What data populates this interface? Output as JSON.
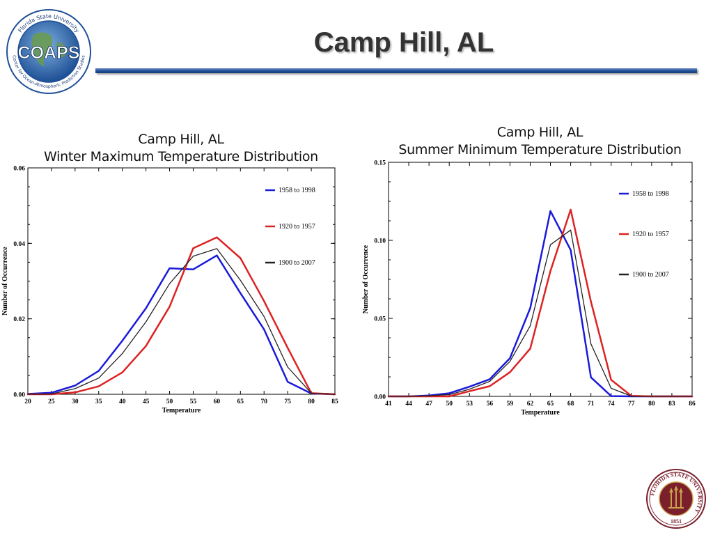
{
  "header": {
    "title": "Camp Hill, AL",
    "logo": {
      "acronym": "COAPS",
      "arc_top": "Florida State University",
      "arc_bottom": "Center for Ocean-Atmospheric Prediction Studies"
    },
    "rule_color": "#1f4f99"
  },
  "seal": {
    "text": "FLORIDA STATE UNIVERSITY",
    "year": "1851",
    "color": "#7a1f2b",
    "accent": "#c9a24a"
  },
  "charts": {
    "left": {
      "title_line1": "Camp Hill, AL",
      "title_line2": "Winter Maximum Temperature Distribution"
    },
    "right": {
      "title_line1": "Camp Hill, AL",
      "title_line2": "Summer Minimum Temperature Distribution"
    }
  },
  "chart_data": [
    {
      "type": "line",
      "title": "Camp Hill, AL Winter Maximum Temperature Distribution",
      "xlabel": "Temperature",
      "ylabel": "Number of Occurrence",
      "xlim": [
        20,
        85
      ],
      "ylim": [
        0,
        0.06
      ],
      "xticks": [
        20,
        25,
        30,
        35,
        40,
        45,
        50,
        55,
        60,
        65,
        70,
        75,
        80,
        85
      ],
      "yticks": [
        0,
        0.02,
        0.04,
        0.06
      ],
      "ytick_labels": [
        "0.00",
        "0.02",
        "0.04",
        "0.06"
      ],
      "legend_position": "top-right",
      "x": [
        20,
        25,
        30,
        35,
        40,
        45,
        50,
        55,
        60,
        65,
        70,
        75,
        80,
        85
      ],
      "series": [
        {
          "name": "1958 to 1998",
          "color": "#1a1adb",
          "width": 2.5,
          "values": [
            0.0001,
            0.0004,
            0.0023,
            0.0062,
            0.0142,
            0.0228,
            0.0334,
            0.0331,
            0.0368,
            0.0268,
            0.0172,
            0.0033,
            0.0002,
            0.0
          ]
        },
        {
          "name": "1920 to 1957",
          "color": "#dd2222",
          "width": 2.5,
          "values": [
            0.0,
            0.0,
            0.0005,
            0.0021,
            0.0058,
            0.0128,
            0.0232,
            0.0387,
            0.0416,
            0.0361,
            0.0247,
            0.0123,
            0.0003,
            0.0
          ]
        },
        {
          "name": "1900 to 2007",
          "color": "#222222",
          "width": 1.3,
          "values": [
            0.0,
            0.0001,
            0.0015,
            0.0043,
            0.0108,
            0.0192,
            0.0293,
            0.0366,
            0.0386,
            0.0302,
            0.0206,
            0.0072,
            0.0003,
            0.0
          ]
        }
      ]
    },
    {
      "type": "line",
      "title": "Camp Hill, AL Summer Minimum Temperature Distribution",
      "xlabel": "Temperature",
      "ylabel": "Number of Occurrence",
      "xlim": [
        41,
        86
      ],
      "ylim": [
        0,
        0.15
      ],
      "xticks": [
        41,
        44,
        47,
        50,
        53,
        56,
        59,
        62,
        65,
        68,
        71,
        74,
        77,
        80,
        83,
        86
      ],
      "yticks": [
        0,
        0.05,
        0.1,
        0.15
      ],
      "ytick_labels": [
        "0.00",
        "0.05",
        "0.10",
        "0.15"
      ],
      "legend_position": "top-right",
      "x": [
        41,
        44,
        47,
        50,
        53,
        56,
        59,
        62,
        65,
        68,
        71,
        74,
        77,
        80,
        83,
        86
      ],
      "series": [
        {
          "name": "1958 to 1998",
          "color": "#1a1adb",
          "width": 2.5,
          "values": [
            0.0,
            0.0,
            0.0006,
            0.002,
            0.0062,
            0.011,
            0.0245,
            0.0565,
            0.1188,
            0.0938,
            0.0122,
            0.0002,
            0.0,
            0.0,
            0.0,
            0.0
          ]
        },
        {
          "name": "1920 to 1957",
          "color": "#dd2222",
          "width": 2.5,
          "values": [
            0.0,
            0.0,
            0.0,
            0.0,
            0.0033,
            0.0065,
            0.0155,
            0.0306,
            0.0803,
            0.1197,
            0.0607,
            0.0106,
            0.0003,
            0.0,
            0.0,
            0.0
          ]
        },
        {
          "name": "1900 to 2007",
          "color": "#222222",
          "width": 1.3,
          "values": [
            0.0,
            0.0,
            0.0004,
            0.0011,
            0.0046,
            0.0096,
            0.0224,
            0.0452,
            0.0972,
            0.1066,
            0.0336,
            0.0052,
            0.0002,
            0.0,
            0.0,
            0.0
          ]
        }
      ]
    }
  ]
}
